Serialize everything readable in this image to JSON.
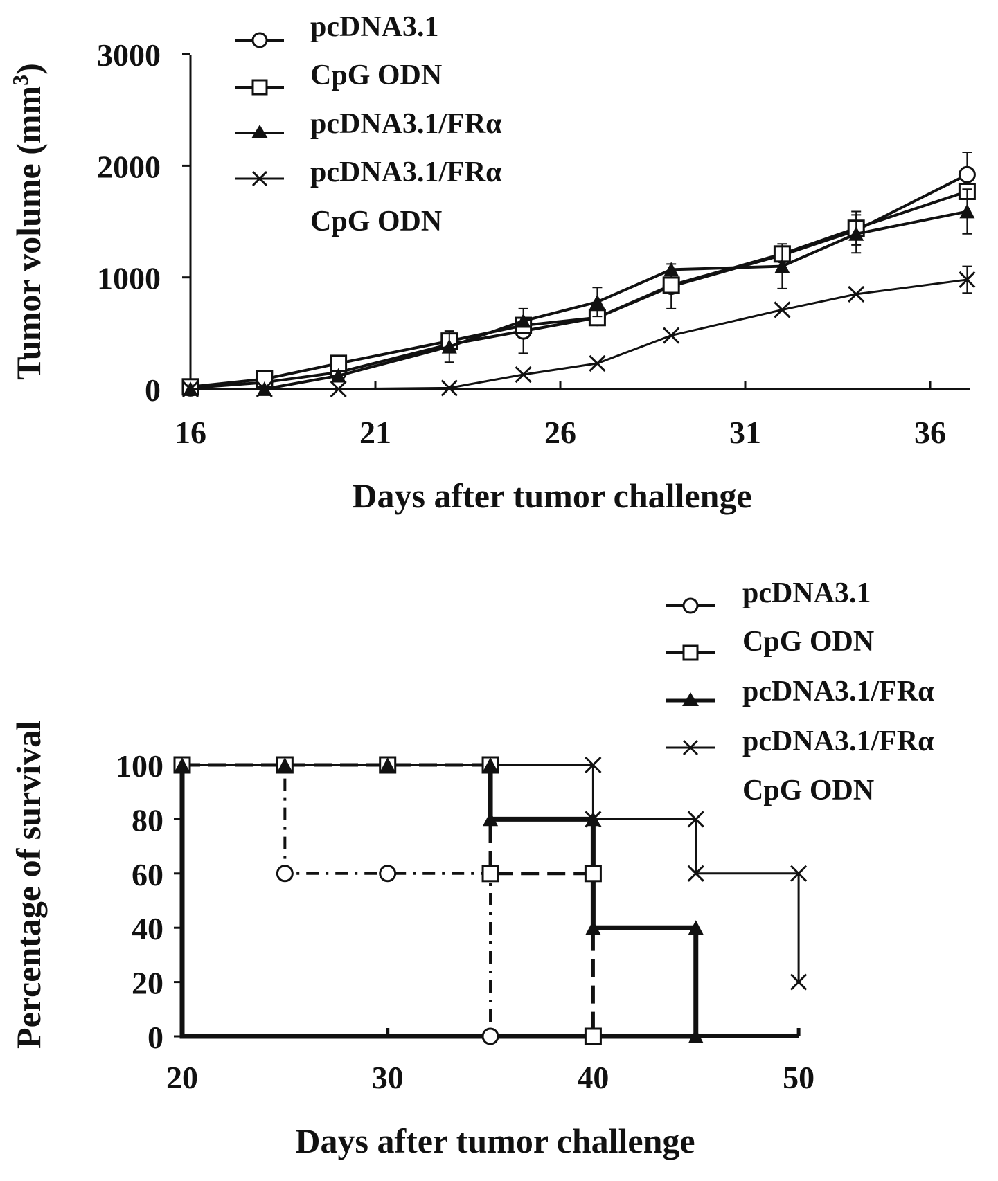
{
  "chart_data": [
    {
      "type": "line",
      "xlabel": "Days after tumor challenge",
      "ylabel_main": "Tumor volume (mm",
      "ylabel_sup": "3",
      "ylabel_close": ")",
      "xlim": [
        16,
        37.5
      ],
      "ylim": [
        0,
        3000
      ],
      "xticks": [
        16,
        21,
        26,
        31,
        36
      ],
      "yticks": [
        0,
        1000,
        2000,
        3000
      ],
      "legend_position": "top-left",
      "series": [
        {
          "name": "pcDNA3.1",
          "marker": "circle-open",
          "x": [
            16,
            18,
            20,
            23,
            25,
            27,
            29,
            32,
            34,
            37
          ],
          "y": [
            10,
            60,
            150,
            400,
            520,
            640,
            920,
            1200,
            1420,
            1920
          ],
          "err": [
            0,
            0,
            0,
            0,
            200,
            0,
            200,
            0,
            0,
            200
          ]
        },
        {
          "name": "CpG ODN",
          "marker": "square-open",
          "x": [
            16,
            18,
            20,
            23,
            25,
            27,
            29,
            32,
            34,
            37
          ],
          "y": [
            20,
            90,
            230,
            430,
            570,
            640,
            930,
            1210,
            1440,
            1770
          ],
          "err": [
            0,
            0,
            0,
            0,
            0,
            0,
            0,
            0,
            150,
            0
          ]
        },
        {
          "name": "pcDNA3.1/FRα",
          "marker": "triangle-filled",
          "x": [
            16,
            18,
            20,
            23,
            25,
            27,
            29,
            32,
            34,
            37
          ],
          "y": [
            0,
            0,
            120,
            380,
            610,
            780,
            1070,
            1100,
            1390,
            1590
          ],
          "err": [
            0,
            0,
            0,
            140,
            0,
            130,
            0,
            200,
            170,
            200
          ]
        },
        {
          "name": "pcDNA3.1/FRα",
          "name_line2": "CpG ODN",
          "marker": "x",
          "x": [
            16,
            18,
            20,
            23,
            25,
            27,
            29,
            32,
            34,
            37
          ],
          "y": [
            0,
            0,
            0,
            10,
            130,
            230,
            480,
            710,
            850,
            980
          ],
          "err": [
            0,
            0,
            0,
            0,
            0,
            0,
            0,
            0,
            0,
            120
          ]
        }
      ]
    },
    {
      "type": "line",
      "xlabel": "Days after tumor challenge",
      "ylabel": "Percentage of survival",
      "xlim": [
        20,
        50
      ],
      "ylim": [
        0,
        100
      ],
      "xticks": [
        20,
        30,
        40,
        50
      ],
      "yticks": [
        0,
        20,
        40,
        60,
        80,
        100
      ],
      "legend_position": "top-right",
      "series": [
        {
          "name": "pcDNA3.1",
          "marker": "circle-open",
          "dash": "dash-dot",
          "steps": [
            [
              20,
              100
            ],
            [
              25,
              100
            ],
            [
              25,
              60
            ],
            [
              30,
              60
            ],
            [
              35,
              60
            ],
            [
              35,
              0
            ]
          ],
          "markers": [
            [
              20,
              100
            ],
            [
              25,
              100
            ],
            [
              25,
              60
            ],
            [
              30,
              60
            ],
            [
              35,
              60
            ],
            [
              35,
              0
            ]
          ]
        },
        {
          "name": "CpG ODN",
          "marker": "square-open",
          "dash": "dashed",
          "steps": [
            [
              20,
              100
            ],
            [
              35,
              100
            ],
            [
              35,
              60
            ],
            [
              40,
              60
            ],
            [
              40,
              0
            ]
          ],
          "markers": [
            [
              20,
              100
            ],
            [
              25,
              100
            ],
            [
              30,
              100
            ],
            [
              35,
              100
            ],
            [
              35,
              60
            ],
            [
              40,
              60
            ],
            [
              40,
              0
            ]
          ]
        },
        {
          "name": "pcDNA3.1/FRα",
          "marker": "triangle-filled",
          "dash": "solid-thick",
          "steps": [
            [
              20,
              100
            ],
            [
              20,
              0
            ],
            [
              45,
              0
            ]
          ],
          "extra_steps": [
            [
              35,
              100
            ],
            [
              35,
              80
            ],
            [
              40,
              80
            ],
            [
              40,
              40
            ],
            [
              45,
              40
            ],
            [
              45,
              0
            ]
          ],
          "markers": [
            [
              20,
              100
            ],
            [
              25,
              100
            ],
            [
              30,
              100
            ],
            [
              35,
              100
            ],
            [
              35,
              80
            ],
            [
              40,
              80
            ],
            [
              40,
              40
            ],
            [
              45,
              40
            ],
            [
              45,
              0
            ]
          ]
        },
        {
          "name": "pcDNA3.1/FRα",
          "name_line2": "CpG ODN",
          "marker": "x",
          "dash": "solid-thin",
          "steps": [
            [
              20,
              100
            ],
            [
              40,
              100
            ],
            [
              40,
              80
            ],
            [
              45,
              80
            ],
            [
              45,
              60
            ],
            [
              50,
              60
            ],
            [
              50,
              20
            ]
          ],
          "markers": [
            [
              20,
              100
            ],
            [
              40,
              100
            ],
            [
              40,
              80
            ],
            [
              45,
              80
            ],
            [
              45,
              60
            ],
            [
              50,
              60
            ],
            [
              50,
              20
            ]
          ]
        }
      ]
    }
  ]
}
